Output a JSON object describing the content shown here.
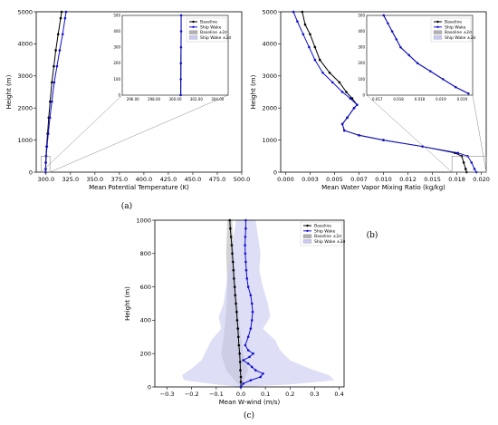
{
  "chart_data": [
    {
      "id": "a",
      "type": "line",
      "caption": "(a)",
      "xlabel": "Mean Potential Temperature (K)",
      "ylabel": "Height (m)",
      "xlim": [
        290,
        500
      ],
      "ylim": [
        0,
        5000
      ],
      "xticks": [
        "300.0",
        "325.0",
        "350.0",
        "375.0",
        "400.0",
        "425.0",
        "450.0",
        "475.0",
        "500.0"
      ],
      "yticks": [
        "0",
        "1000",
        "2000",
        "3000",
        "4000",
        "5000"
      ],
      "series": [
        {
          "name": "Baseline",
          "color": "#000000",
          "points": [
            [
              299.6,
              0
            ],
            [
              299.6,
              100
            ],
            [
              299.7,
              300
            ],
            [
              300.0,
              500
            ],
            [
              300.6,
              800
            ],
            [
              301.6,
              1200
            ],
            [
              302.8,
              1700
            ],
            [
              304.2,
              2200
            ],
            [
              306.0,
              2800
            ],
            [
              308.0,
              3300
            ],
            [
              310.0,
              3800
            ],
            [
              312.4,
              4300
            ],
            [
              315.0,
              4800
            ],
            [
              316.0,
              5000
            ]
          ]
        },
        {
          "name": "Ship Wake",
          "color": "#1010d0",
          "points": [
            [
              299.7,
              0
            ],
            [
              299.7,
              100
            ],
            [
              299.9,
              300
            ],
            [
              300.3,
              500
            ],
            [
              301.0,
              800
            ],
            [
              302.3,
              1200
            ],
            [
              304.0,
              1700
            ],
            [
              306.0,
              2200
            ],
            [
              308.4,
              2800
            ],
            [
              311.2,
              3300
            ],
            [
              314.0,
              3800
            ],
            [
              317.0,
              4300
            ],
            [
              319.5,
              4800
            ],
            [
              320.5,
              5000
            ]
          ]
        }
      ],
      "inset": {
        "xlim": [
          295,
          304
        ],
        "ylim": [
          0,
          500
        ],
        "xticks": [
          "296.00",
          "298.00",
          "300.00",
          "302.00",
          "304.00"
        ],
        "yticks": [
          "0",
          "100",
          "200",
          "300",
          "400",
          "500"
        ],
        "legend": [
          "Baseline",
          "Ship Wake",
          "Baseline ±2σ",
          "Ship Wake ±2σ"
        ],
        "legend_position": "top-right",
        "series": [
          {
            "name": "Baseline",
            "color": "#000000",
            "points": [
              [
                299.96,
                0
              ],
              [
                299.97,
                100
              ],
              [
                299.98,
                200
              ],
              [
                299.99,
                300
              ],
              [
                300.0,
                400
              ],
              [
                300.0,
                500
              ]
            ]
          },
          {
            "name": "Ship Wake",
            "color": "#1010d0",
            "points": [
              [
                299.98,
                0
              ],
              [
                299.98,
                100
              ],
              [
                299.99,
                200
              ],
              [
                300.0,
                300
              ],
              [
                300.01,
                400
              ],
              [
                300.01,
                500
              ]
            ]
          }
        ]
      }
    },
    {
      "id": "b",
      "type": "line",
      "caption": "(b)",
      "xlabel": "Mean Water Vapor Mixing Ratio (kg/kg)",
      "ylabel": "Height (m)",
      "xlim": [
        -0.0005,
        0.0205
      ],
      "ylim": [
        0,
        5000
      ],
      "xticks": [
        "0.000",
        "0.003",
        "0.005",
        "0.007",
        "0.010",
        "0.012",
        "0.015",
        "0.018",
        "0.020"
      ],
      "yticks": [
        "0",
        "1000",
        "2000",
        "3000",
        "4000",
        "5000"
      ],
      "series": [
        {
          "name": "Baseline",
          "color": "#000000",
          "points": [
            [
              0.0185,
              0
            ],
            [
              0.0184,
              100
            ],
            [
              0.0182,
              300
            ],
            [
              0.018,
              500
            ],
            [
              0.0173,
              600
            ],
            [
              0.014,
              800
            ],
            [
              0.01,
              1000
            ],
            [
              0.0075,
              1150
            ],
            [
              0.006,
              1300
            ],
            [
              0.0058,
              1500
            ],
            [
              0.0063,
              1700
            ],
            [
              0.007,
              2000
            ],
            [
              0.0073,
              2100
            ],
            [
              0.0068,
              2300
            ],
            [
              0.0062,
              2500
            ],
            [
              0.0055,
              2800
            ],
            [
              0.0045,
              3100
            ],
            [
              0.0035,
              3500
            ],
            [
              0.003,
              3900
            ],
            [
              0.0025,
              4300
            ],
            [
              0.002,
              4600
            ],
            [
              0.0017,
              5000
            ]
          ]
        },
        {
          "name": "Ship Wake",
          "color": "#1010d0",
          "points": [
            [
              0.0195,
              0
            ],
            [
              0.0193,
              100
            ],
            [
              0.019,
              300
            ],
            [
              0.0186,
              500
            ],
            [
              0.0176,
              600
            ],
            [
              0.014,
              800
            ],
            [
              0.01,
              1000
            ],
            [
              0.0075,
              1150
            ],
            [
              0.006,
              1300
            ],
            [
              0.0058,
              1500
            ],
            [
              0.0063,
              1700
            ],
            [
              0.007,
              2000
            ],
            [
              0.0073,
              2100
            ],
            [
              0.0066,
              2300
            ],
            [
              0.0058,
              2500
            ],
            [
              0.0048,
              2800
            ],
            [
              0.0038,
              3100
            ],
            [
              0.003,
              3500
            ],
            [
              0.0024,
              3900
            ],
            [
              0.0018,
              4300
            ],
            [
              0.0012,
              4700
            ],
            [
              0.0008,
              5000
            ]
          ]
        }
      ],
      "inset": {
        "xlim": [
          0.017,
          0.0195
        ],
        "ylim": [
          0,
          500
        ],
        "xticks": [
          "0.017",
          "0.018",
          "0.018",
          "0.019",
          "0.019"
        ],
        "yticks": [
          "0",
          "100",
          "200",
          "300",
          "400",
          "500"
        ],
        "legend": [
          "Baseline",
          "Ship Wake",
          "Baseline ±2σ",
          "Ship Wake ±2σ"
        ],
        "legend_position": "top-right",
        "series": [
          {
            "name": "Baseline",
            "color": "#000000",
            "points": [
              [
                0.0174,
                500
              ],
              [
                0.0175,
                450
              ],
              [
                0.0176,
                400
              ],
              [
                0.0177,
                350
              ],
              [
                0.0178,
                300
              ],
              [
                0.018,
                250
              ],
              [
                0.0182,
                200
              ],
              [
                0.0185,
                150
              ],
              [
                0.0188,
                100
              ],
              [
                0.0191,
                50
              ],
              [
                0.0194,
                10
              ]
            ]
          },
          {
            "name": "Ship Wake",
            "color": "#1010d0",
            "points": [
              [
                0.0174,
                500
              ],
              [
                0.0175,
                450
              ],
              [
                0.0176,
                400
              ],
              [
                0.0177,
                350
              ],
              [
                0.0178,
                300
              ],
              [
                0.018,
                250
              ],
              [
                0.0182,
                200
              ],
              [
                0.0185,
                150
              ],
              [
                0.0188,
                100
              ],
              [
                0.0191,
                50
              ],
              [
                0.0194,
                10
              ]
            ]
          }
        ]
      }
    },
    {
      "id": "c",
      "type": "line",
      "caption": "(c)",
      "xlabel": "Mean W-wind (m/s)",
      "ylabel": "Height (m)",
      "xlim": [
        -0.35,
        0.42
      ],
      "ylim": [
        0,
        1000
      ],
      "xticks": [
        "−0.3",
        "−0.2",
        "−0.1",
        "0.0",
        "0.1",
        "0.2",
        "0.3",
        "0.4"
      ],
      "yticks": [
        "0",
        "200",
        "400",
        "600",
        "800",
        "1000"
      ],
      "legend": [
        "Baseline",
        "Ship Wake",
        "Baseline ±2σ",
        "Ship Wake ±2σ"
      ],
      "legend_position": "top-right",
      "series": [
        {
          "name": "Baseline",
          "color": "#000000",
          "points": [
            [
              -0.045,
              1000
            ],
            [
              -0.043,
              950
            ],
            [
              -0.04,
              900
            ],
            [
              -0.037,
              850
            ],
            [
              -0.035,
              800
            ],
            [
              -0.032,
              750
            ],
            [
              -0.03,
              700
            ],
            [
              -0.028,
              650
            ],
            [
              -0.025,
              600
            ],
            [
              -0.023,
              550
            ],
            [
              -0.02,
              500
            ],
            [
              -0.017,
              450
            ],
            [
              -0.015,
              400
            ],
            [
              -0.012,
              350
            ],
            [
              -0.01,
              300
            ],
            [
              -0.008,
              250
            ],
            [
              -0.005,
              200
            ],
            [
              -0.003,
              150
            ],
            [
              -0.002,
              100
            ],
            [
              0.0,
              60
            ],
            [
              0.0,
              30
            ],
            [
              0.0,
              0
            ]
          ]
        },
        {
          "name": "Ship Wake",
          "color": "#1010d0",
          "points": [
            [
              0.02,
              1000
            ],
            [
              0.02,
              950
            ],
            [
              0.018,
              900
            ],
            [
              0.017,
              850
            ],
            [
              0.018,
              800
            ],
            [
              0.02,
              750
            ],
            [
              0.022,
              700
            ],
            [
              0.025,
              650
            ],
            [
              0.03,
              600
            ],
            [
              0.04,
              550
            ],
            [
              0.045,
              500
            ],
            [
              0.048,
              450
            ],
            [
              0.045,
              400
            ],
            [
              0.04,
              350
            ],
            [
              0.03,
              300
            ],
            [
              0.018,
              250
            ],
            [
              0.03,
              220
            ],
            [
              0.05,
              200
            ],
            [
              0.035,
              180
            ],
            [
              0.01,
              160
            ],
            [
              0.03,
              140
            ],
            [
              0.045,
              120
            ],
            [
              0.06,
              100
            ],
            [
              0.09,
              80
            ],
            [
              0.08,
              60
            ],
            [
              0.04,
              40
            ],
            [
              0.01,
              20
            ],
            [
              0.0,
              0
            ]
          ]
        }
      ],
      "bands": [
        {
          "name": "Baseline ±2σ",
          "color": "#b0b0b0",
          "upper": [
            [
              -0.035,
              1000
            ],
            [
              -0.03,
              800
            ],
            [
              -0.02,
              600
            ],
            [
              -0.01,
              450
            ],
            [
              0.0,
              300
            ],
            [
              0.01,
              200
            ],
            [
              0.03,
              100
            ],
            [
              0.01,
              30
            ],
            [
              0.0,
              0
            ]
          ],
          "lower": [
            [
              -0.055,
              1000
            ],
            [
              -0.06,
              800
            ],
            [
              -0.055,
              600
            ],
            [
              -0.06,
              450
            ],
            [
              -0.07,
              300
            ],
            [
              -0.08,
              200
            ],
            [
              -0.06,
              100
            ],
            [
              -0.02,
              30
            ],
            [
              0.0,
              0
            ]
          ]
        },
        {
          "name": "Ship Wake ±2σ",
          "color": "#c8c8f0",
          "upper": [
            [
              0.06,
              1000
            ],
            [
              0.07,
              900
            ],
            [
              0.08,
              800
            ],
            [
              0.075,
              700
            ],
            [
              0.09,
              600
            ],
            [
              0.11,
              500
            ],
            [
              0.12,
              420
            ],
            [
              0.09,
              350
            ],
            [
              0.14,
              280
            ],
            [
              0.16,
              220
            ],
            [
              0.2,
              160
            ],
            [
              0.28,
              110
            ],
            [
              0.36,
              70
            ],
            [
              0.38,
              40
            ],
            [
              0.2,
              15
            ],
            [
              0.0,
              0
            ]
          ],
          "lower": [
            [
              -0.02,
              1000
            ],
            [
              -0.03,
              900
            ],
            [
              -0.04,
              800
            ],
            [
              -0.05,
              700
            ],
            [
              -0.06,
              600
            ],
            [
              -0.07,
              500
            ],
            [
              -0.09,
              420
            ],
            [
              -0.08,
              350
            ],
            [
              -0.12,
              280
            ],
            [
              -0.14,
              220
            ],
            [
              -0.16,
              160
            ],
            [
              -0.2,
              110
            ],
            [
              -0.24,
              70
            ],
            [
              -0.23,
              40
            ],
            [
              -0.1,
              15
            ],
            [
              0.0,
              0
            ]
          ]
        }
      ]
    }
  ]
}
